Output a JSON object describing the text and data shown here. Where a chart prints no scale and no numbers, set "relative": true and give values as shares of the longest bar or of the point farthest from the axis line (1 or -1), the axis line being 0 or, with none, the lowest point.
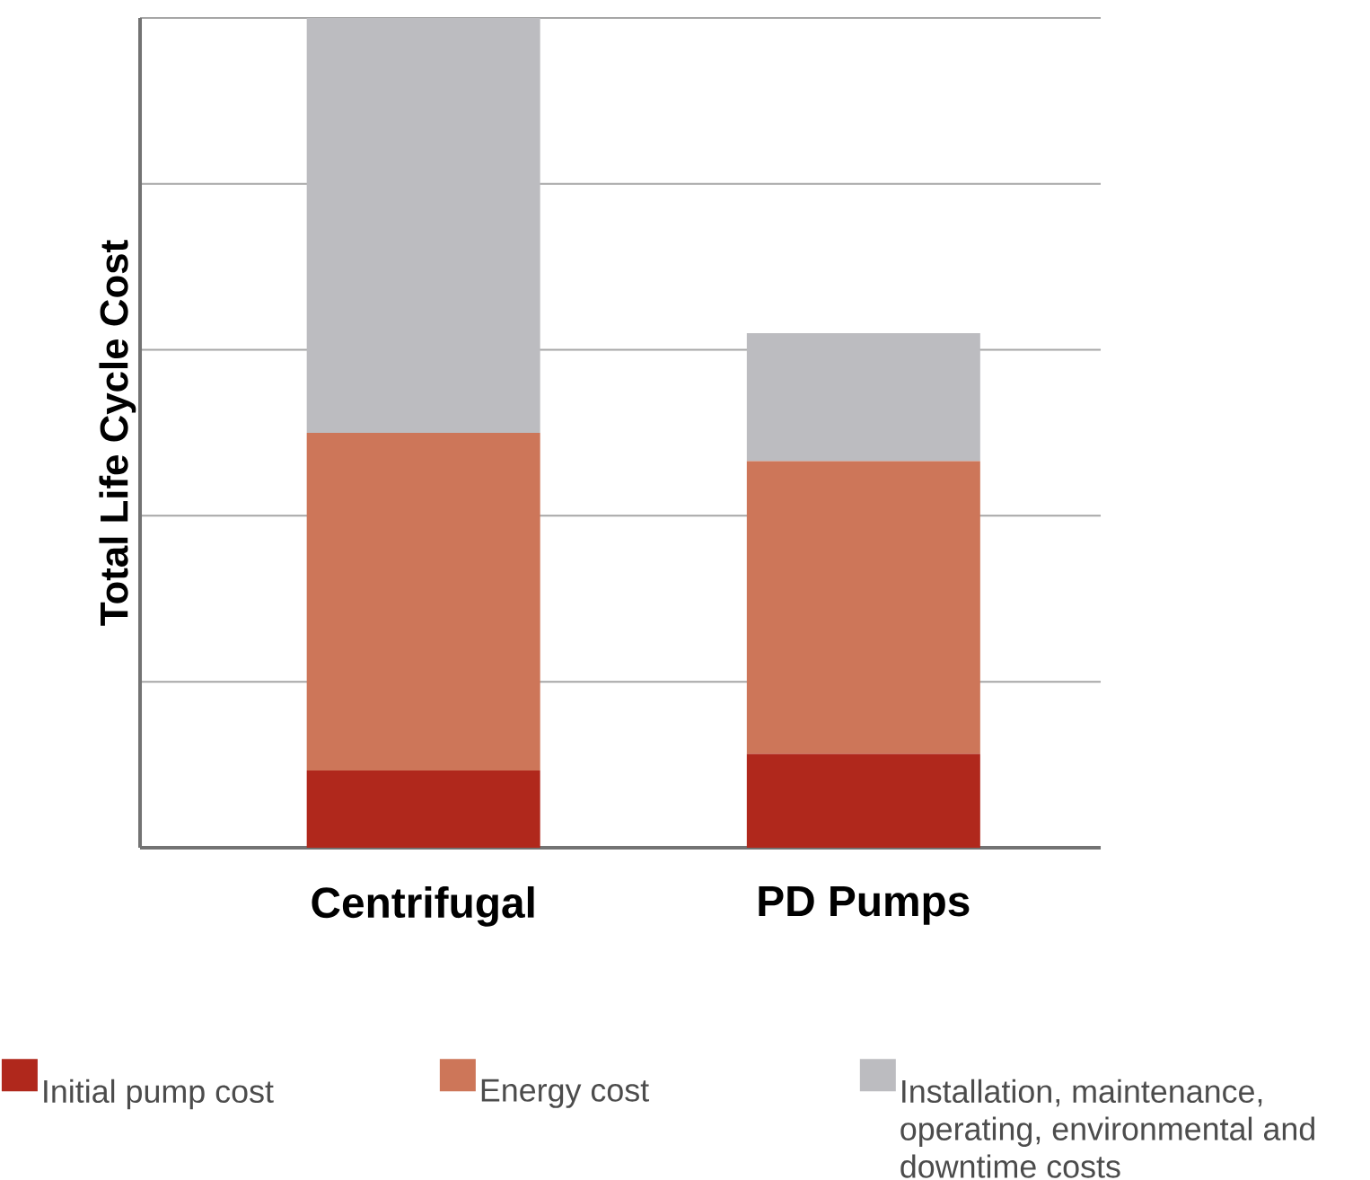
{
  "chart_data": {
    "type": "bar",
    "stacked": true,
    "relative": true,
    "ylabel": "Total Life Cycle Cost",
    "categories": [
      "Centrifugal",
      "PD Pumps"
    ],
    "grid": "y",
    "legend": "bottom",
    "series": [
      {
        "name": "Initial pump cost",
        "color": "#b0281c",
        "values": [
          0.093,
          0.113
        ]
      },
      {
        "name": "Energy cost",
        "color": "#cd7659",
        "values": [
          0.407,
          0.353
        ]
      },
      {
        "name": "Installation, maintenance, operating, environmental and downtime costs",
        "color": "#bcbcc0",
        "values": [
          0.5,
          0.154
        ]
      }
    ]
  }
}
